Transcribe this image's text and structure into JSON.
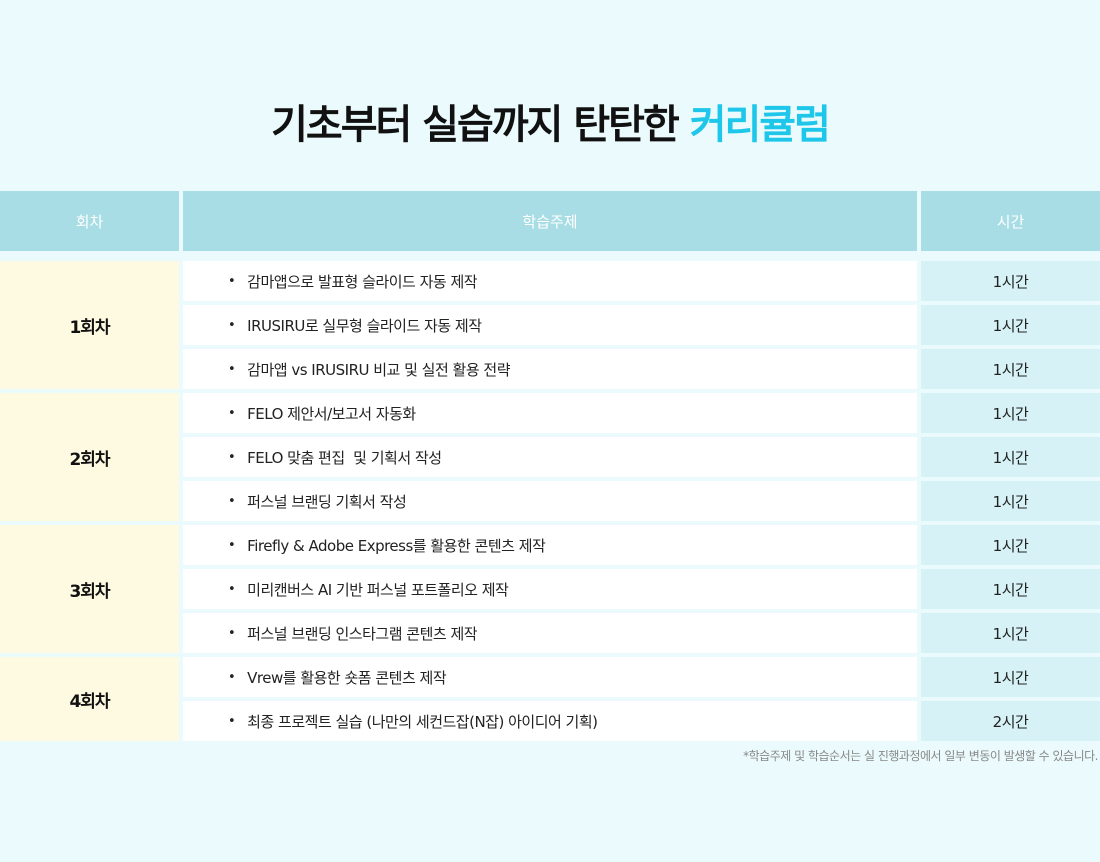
{
  "title": {
    "main": "기초부터 실습까지 탄탄한 ",
    "accent": "커리큘럼"
  },
  "colors": {
    "accent": "#1ec6ea",
    "header_bg": "#a8dde6",
    "session_bg": "#fef9e1",
    "hours_bg": "#d7f2f7"
  },
  "table": {
    "headers": [
      "회차",
      "학습주제",
      "시간"
    ],
    "sessions": [
      {
        "label": "1회차",
        "topics": [
          {
            "topic": "감마앱으로 발표형 슬라이드 자동 제작",
            "hours": "1시간"
          },
          {
            "topic": "IRUSIRU로 실무형 슬라이드 자동 제작",
            "hours": "1시간"
          },
          {
            "topic": "감마앱 vs IRUSIRU 비교 및 실전 활용 전략",
            "hours": "1시간"
          }
        ]
      },
      {
        "label": "2회차",
        "topics": [
          {
            "topic": "FELO 제안서/보고서 자동화",
            "hours": "1시간"
          },
          {
            "topic": "FELO 맞춤 편집  및 기획서 작성",
            "hours": "1시간"
          },
          {
            "topic": "퍼스널 브랜딩 기획서 작성",
            "hours": "1시간"
          }
        ]
      },
      {
        "label": "3회차",
        "topics": [
          {
            "topic": "Firefly & Adobe Express를 활용한 콘텐츠 제작",
            "hours": "1시간"
          },
          {
            "topic": "미리캔버스 AI 기반 퍼스널 포트폴리오 제작",
            "hours": "1시간"
          },
          {
            "topic": "퍼스널 브랜딩 인스타그램 콘텐츠 제작",
            "hours": "1시간"
          }
        ]
      },
      {
        "label": "4회차",
        "topics": [
          {
            "topic": "Vrew를 활용한 숏폼 콘텐츠 제작",
            "hours": "1시간"
          },
          {
            "topic": "최종 프로젝트 실습 (나만의 세컨드잡(N잡) 아이디어 기획)",
            "hours": "2시간"
          }
        ]
      }
    ],
    "bullet": "•"
  },
  "note": "*학습주제 및 학습순서는 실 진행과정에서 일부 변동이 발생할 수 있습니다."
}
